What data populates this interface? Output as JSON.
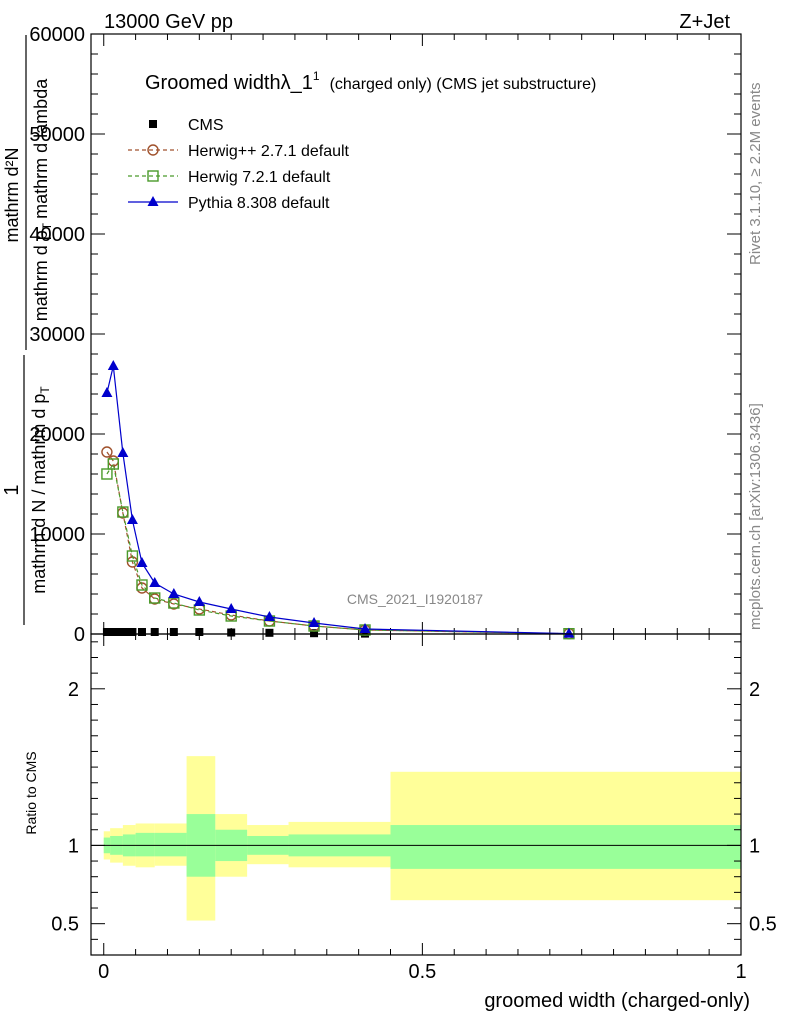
{
  "header": {
    "left": "13000 GeV pp",
    "right": "Z+Jet"
  },
  "side_labels": {
    "rivet": "Rivet 3.1.10, ≥ 2.2M events",
    "mcplots": "mcplots.cern.ch [arXiv:1306.3436]"
  },
  "watermark": "CMS_2021_I1920187",
  "chart_data": [
    {
      "type": "line",
      "panel": "main",
      "title_main": "Groomed widthλ_1",
      "title_sup": "1",
      "title_sub": "(charged only) (CMS jet substructure)",
      "ylabel_numer_top": "1",
      "ylabel_denom_top": "mathrm d N / mathrm d p",
      "ylabel_denom_top_sub": "T",
      "ylabel_numer_bottom": "mathrm d²N",
      "ylabel_denom_bottom": "mathrm d p",
      "ylabel_denom_bottom_sub": "T",
      "ylabel_denom_bottom_tail": "mathrm d lambda",
      "xlim": [
        -0.02,
        1.0
      ],
      "ylim": [
        0,
        60000
      ],
      "yticks": [
        0,
        10000,
        20000,
        30000,
        40000,
        50000,
        60000
      ],
      "ytick_labels": [
        "0",
        "10000",
        "20000",
        "30000",
        "40000",
        "50000",
        "60000"
      ],
      "legend_position": "top-left",
      "series": [
        {
          "name": "CMS",
          "color": "#000000",
          "marker": "square-filled",
          "x": [
            0.005,
            0.015,
            0.025,
            0.035,
            0.045,
            0.06,
            0.08,
            0.11,
            0.15,
            0.2,
            0.26,
            0.33,
            0.41
          ],
          "y": [
            200,
            200,
            200,
            200,
            200,
            200,
            200,
            200,
            200,
            150,
            120,
            80,
            40
          ]
        },
        {
          "name": "Herwig++ 2.7.1 default",
          "color": "#a0522d",
          "marker": "circle-open",
          "dash": true,
          "x": [
            0.005,
            0.015,
            0.03,
            0.045,
            0.06,
            0.08,
            0.11,
            0.15,
            0.2,
            0.26,
            0.33,
            0.41,
            0.73
          ],
          "y": [
            18200,
            17300,
            12100,
            7200,
            4600,
            3500,
            3000,
            2500,
            1900,
            1300,
            800,
            400,
            30
          ]
        },
        {
          "name": "Herwig 7.2.1 default",
          "color": "#4a9a2a",
          "marker": "square-open",
          "dash": true,
          "x": [
            0.005,
            0.015,
            0.03,
            0.045,
            0.06,
            0.08,
            0.11,
            0.15,
            0.2,
            0.26,
            0.33,
            0.41,
            0.73
          ],
          "y": [
            16000,
            17000,
            12200,
            7800,
            4900,
            3600,
            3100,
            2400,
            1800,
            1300,
            800,
            400,
            30
          ]
        },
        {
          "name": "Pythia 8.308 default",
          "color": "#0000cc",
          "marker": "triangle-filled",
          "dash": false,
          "x": [
            0.005,
            0.015,
            0.03,
            0.045,
            0.06,
            0.08,
            0.11,
            0.15,
            0.2,
            0.26,
            0.33,
            0.41,
            0.73
          ],
          "y": [
            24100,
            26800,
            18100,
            11400,
            7100,
            5100,
            4000,
            3200,
            2500,
            1700,
            1100,
            500,
            40
          ]
        }
      ]
    },
    {
      "type": "area",
      "panel": "ratio",
      "ylabel": "Ratio to CMS",
      "xlabel": "groomed width (charged-only)",
      "xlim": [
        -0.02,
        1.0
      ],
      "xticks": [
        0,
        0.5,
        1
      ],
      "xtick_labels": [
        "0",
        "0.5",
        "1"
      ],
      "ylim": [
        0.3,
        2.35
      ],
      "yticks": [
        0.5,
        1,
        2
      ],
      "ytick_labels": [
        "0.5",
        "1",
        "2"
      ],
      "bands": [
        {
          "x0": 0.0,
          "x1": 0.01,
          "stat": [
            0.95,
            1.05
          ],
          "total": [
            0.91,
            1.09
          ]
        },
        {
          "x0": 0.01,
          "x1": 0.03,
          "stat": [
            0.94,
            1.06
          ],
          "total": [
            0.89,
            1.11
          ]
        },
        {
          "x0": 0.03,
          "x1": 0.05,
          "stat": [
            0.93,
            1.07
          ],
          "total": [
            0.87,
            1.13
          ]
        },
        {
          "x0": 0.05,
          "x1": 0.08,
          "stat": [
            0.93,
            1.08
          ],
          "total": [
            0.86,
            1.14
          ]
        },
        {
          "x0": 0.08,
          "x1": 0.13,
          "stat": [
            0.93,
            1.08
          ],
          "total": [
            0.87,
            1.14
          ]
        },
        {
          "x0": 0.13,
          "x1": 0.175,
          "stat": [
            0.8,
            1.2
          ],
          "total": [
            0.52,
            1.57
          ]
        },
        {
          "x0": 0.175,
          "x1": 0.225,
          "stat": [
            0.9,
            1.1
          ],
          "total": [
            0.8,
            1.2
          ]
        },
        {
          "x0": 0.225,
          "x1": 0.29,
          "stat": [
            0.94,
            1.06
          ],
          "total": [
            0.88,
            1.13
          ]
        },
        {
          "x0": 0.29,
          "x1": 0.45,
          "stat": [
            0.93,
            1.07
          ],
          "total": [
            0.86,
            1.15
          ]
        },
        {
          "x0": 0.45,
          "x1": 1.0,
          "stat": [
            0.85,
            1.13
          ],
          "total": [
            0.65,
            1.47
          ]
        }
      ]
    }
  ]
}
